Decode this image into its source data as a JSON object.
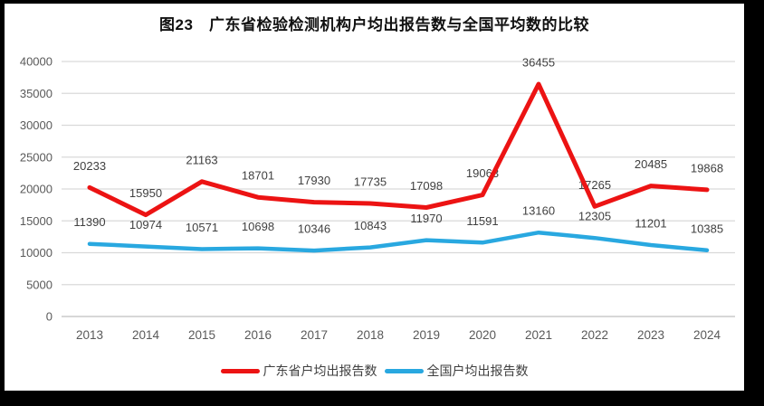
{
  "window": {
    "frame_color": "#000000",
    "background": "#FFFFFF"
  },
  "chart_data": {
    "type": "line",
    "title": "图23　广东省检验检测机构户均出报告数与全国平均数的比较",
    "categories": [
      "2013",
      "2014",
      "2015",
      "2016",
      "2017",
      "2018",
      "2019",
      "2020",
      "2021",
      "2022",
      "2023",
      "2024"
    ],
    "series": [
      {
        "key": "guangdong",
        "name": "广东省户均出报告数",
        "color": "#EC1313",
        "line_width": 5,
        "values": [
          20233,
          15950,
          21163,
          18701,
          17930,
          17735,
          17098,
          19063,
          36455,
          17265,
          20485,
          19868
        ]
      },
      {
        "key": "national",
        "name": "全国户均出报告数",
        "color": "#29A8E0",
        "line_width": 4.5,
        "values": [
          11390,
          10974,
          10571,
          10698,
          10346,
          10843,
          11970,
          11591,
          13160,
          12305,
          11201,
          10385
        ]
      }
    ],
    "xlabel": "",
    "ylabel": "",
    "ylim": [
      0,
      40000
    ],
    "yticks": [
      0,
      5000,
      10000,
      15000,
      20000,
      25000,
      30000,
      35000,
      40000
    ],
    "grid": "horizontal",
    "gridline_color": "#D9D9D9",
    "axis_line_color": "#BFBFBF",
    "axis_text_color": "#595959",
    "data_label_color": "#404040",
    "legend_position": "bottom",
    "data_labels": true
  }
}
